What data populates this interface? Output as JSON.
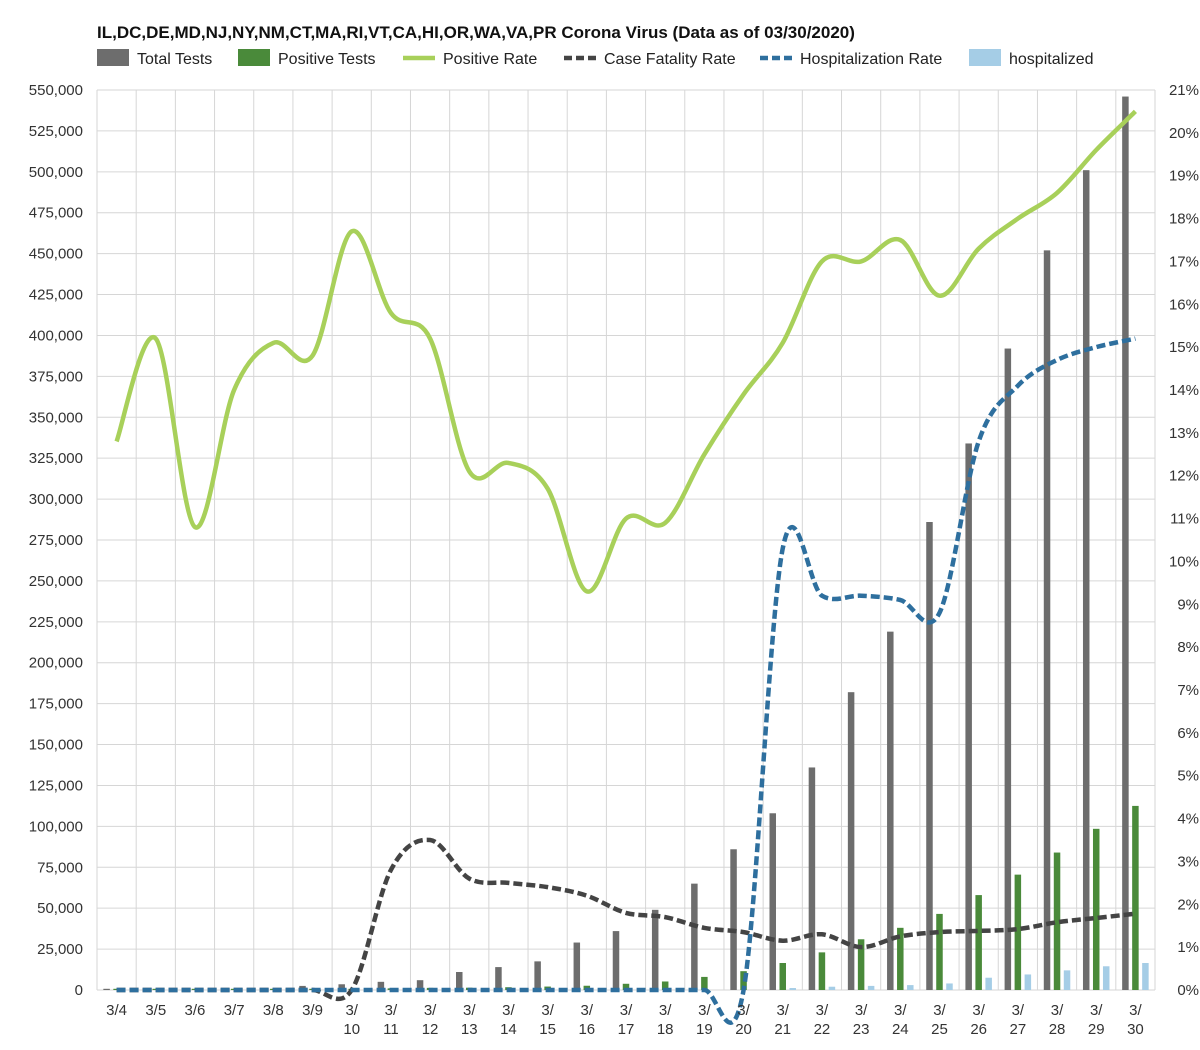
{
  "chart_data": {
    "type": "bar",
    "title": "IL,DC,DE,MD,NJ,NY,NM,CT,MA,RI,VT,CA,HI,OR,WA,VA,PR Corona Virus (Data as of 03/30/2020)",
    "categories": [
      "3/4",
      "3/5",
      "3/6",
      "3/7",
      "3/8",
      "3/9",
      "3/10",
      "3/11",
      "3/12",
      "3/13",
      "3/14",
      "3/15",
      "3/16",
      "3/17",
      "3/18",
      "3/19",
      "3/20",
      "3/21",
      "3/22",
      "3/23",
      "3/24",
      "3/25",
      "3/26",
      "3/27",
      "3/28",
      "3/29",
      "3/30"
    ],
    "x_tick_lines": [
      [
        "3/4"
      ],
      [
        "3/5"
      ],
      [
        "3/6"
      ],
      [
        "3/7"
      ],
      [
        "3/8"
      ],
      [
        "3/9"
      ],
      [
        "3/",
        "10"
      ],
      [
        "3/",
        "11"
      ],
      [
        "3/",
        "12"
      ],
      [
        "3/",
        "13"
      ],
      [
        "3/",
        "14"
      ],
      [
        "3/",
        "15"
      ],
      [
        "3/",
        "16"
      ],
      [
        "3/",
        "17"
      ],
      [
        "3/",
        "18"
      ],
      [
        "3/",
        "19"
      ],
      [
        "3/",
        "20"
      ],
      [
        "3/",
        "21"
      ],
      [
        "3/",
        "22"
      ],
      [
        "3/",
        "23"
      ],
      [
        "3/",
        "24"
      ],
      [
        "3/",
        "25"
      ],
      [
        "3/",
        "26"
      ],
      [
        "3/",
        "27"
      ],
      [
        "3/",
        "28"
      ],
      [
        "3/",
        "29"
      ],
      [
        "3/",
        "30"
      ]
    ],
    "ylim": [
      0,
      550000
    ],
    "y_ticks": [
      "0",
      "25,000",
      "50,000",
      "75,000",
      "100,000",
      "125,000",
      "150,000",
      "175,000",
      "200,000",
      "225,000",
      "250,000",
      "275,000",
      "300,000",
      "325,000",
      "350,000",
      "375,000",
      "400,000",
      "425,000",
      "450,000",
      "475,000",
      "500,000",
      "525,000",
      "550,000"
    ],
    "y2lim": [
      0,
      21
    ],
    "y2_ticks": [
      "0%",
      "1%",
      "2%",
      "3%",
      "4%",
      "5%",
      "6%",
      "7%",
      "8%",
      "9%",
      "10%",
      "11%",
      "12%",
      "13%",
      "14%",
      "15%",
      "16%",
      "17%",
      "18%",
      "19%",
      "20%",
      "21%"
    ],
    "grid": true,
    "legend_position": "top",
    "bar_series": [
      {
        "name": "Total Tests",
        "color": "#6d6d6d",
        "axis": "left",
        "values": [
          500,
          500,
          600,
          700,
          1000,
          2500,
          3500,
          5000,
          6000,
          11000,
          14000,
          17500,
          29000,
          36000,
          49000,
          65000,
          86000,
          108000,
          136000,
          182000,
          219000,
          286000,
          334000,
          392000,
          452000,
          501000,
          546000
        ]
      },
      {
        "name": "Positive Tests",
        "color": "#4a8a3a",
        "axis": "left",
        "values": [
          100,
          100,
          100,
          200,
          200,
          400,
          700,
          1000,
          1300,
          1400,
          1700,
          2100,
          2600,
          3800,
          5200,
          8000,
          11500,
          16500,
          23000,
          31000,
          38000,
          46500,
          58000,
          70500,
          84000,
          98500,
          112500
        ]
      },
      {
        "name": "hospitalized",
        "color": "#a5cde6",
        "axis": "left",
        "values": [
          0,
          0,
          0,
          0,
          0,
          0,
          0,
          0,
          0,
          0,
          0,
          0,
          0,
          0,
          0,
          0,
          0,
          1200,
          2000,
          2500,
          3000,
          4000,
          7500,
          9500,
          12000,
          14500,
          16500
        ]
      }
    ],
    "line_series": [
      {
        "name": "Positive Rate",
        "color": "#a8d05a",
        "style": "solid",
        "axis": "right",
        "values": [
          12.8,
          15.2,
          10.8,
          14.0,
          15.1,
          14.8,
          17.7,
          15.8,
          15.2,
          12.1,
          12.3,
          11.7,
          9.3,
          11.0,
          10.9,
          12.5,
          13.9,
          15.1,
          17.0,
          17.0,
          17.5,
          16.2,
          17.3,
          18.0,
          18.6,
          19.6,
          20.5
        ]
      },
      {
        "name": "Case Fatality Rate",
        "color": "#444444",
        "style": "dash",
        "axis": "right",
        "values": [
          0,
          0,
          0,
          0,
          0,
          0,
          0,
          2.8,
          3.5,
          2.6,
          2.5,
          2.4,
          2.2,
          1.8,
          1.7,
          1.45,
          1.35,
          1.15,
          1.3,
          1.0,
          1.25,
          1.35,
          1.38,
          1.42,
          1.58,
          1.68,
          1.78
        ]
      },
      {
        "name": "Hospitalization Rate",
        "color": "#2e6f9e",
        "style": "dash",
        "axis": "right",
        "values": [
          0,
          0,
          0,
          0,
          0,
          0,
          0,
          0,
          0,
          0,
          0,
          0,
          0,
          0,
          0,
          0,
          0,
          10.3,
          9.2,
          9.2,
          9.1,
          8.8,
          12.8,
          14.1,
          14.7,
          15.0,
          15.2
        ]
      }
    ],
    "legend": [
      {
        "name": "Total Tests",
        "kind": "box",
        "color": "#6d6d6d"
      },
      {
        "name": "Positive Tests",
        "kind": "box",
        "color": "#4a8a3a"
      },
      {
        "name": "Positive Rate",
        "kind": "line",
        "color": "#a8d05a"
      },
      {
        "name": "Case Fatality Rate",
        "kind": "dash",
        "color": "#444444"
      },
      {
        "name": "Hospitalization Rate",
        "kind": "dash",
        "color": "#2e6f9e"
      },
      {
        "name": "hospitalized",
        "kind": "box",
        "color": "#a5cde6"
      }
    ]
  }
}
